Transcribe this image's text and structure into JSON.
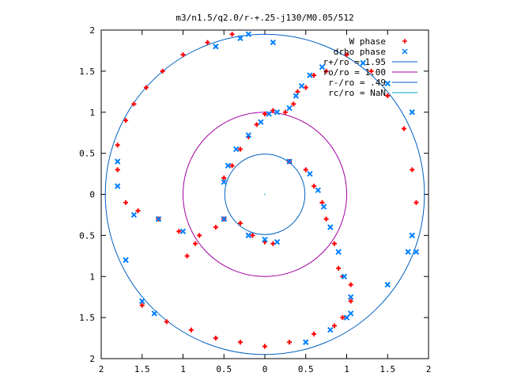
{
  "chart_data": {
    "type": "scatter",
    "title": "m3/n1.5/q2.0/r-+.25-j130/M0.05/512",
    "xlabel": "",
    "ylabel": "",
    "xlim": [
      -2,
      2
    ],
    "ylim": [
      -2,
      2
    ],
    "x_tick_labels": [
      "2",
      "1.5",
      "1",
      "0.5",
      "0",
      "0.5",
      "1",
      "1.5",
      "2"
    ],
    "y_tick_labels": [
      "2",
      "1.5",
      "1",
      "0.5",
      "0",
      "0.5",
      "1",
      "1.5",
      "2"
    ],
    "grid": false,
    "legend_position": "top-right",
    "legend": [
      {
        "label": "W phase",
        "marker": "+",
        "color": "#ff0000"
      },
      {
        "label": "drho phase",
        "marker": "x",
        "color": "#0080ff"
      },
      {
        "label": "r+/ro = 1.95",
        "line": true,
        "color": "#0060c0"
      },
      {
        "label": "ro/ro = 1.00",
        "line": true,
        "color": "#a000a0"
      },
      {
        "label": "r-/ro = .49",
        "line": true,
        "color": "#0060c0"
      },
      {
        "label": "rc/ro = NaN",
        "line": true,
        "color": "#00a0c0"
      }
    ],
    "circles": [
      {
        "name": "r+/ro = 1.95",
        "r": 1.95,
        "color": "#0060c0"
      },
      {
        "name": "ro/ro = 1.00",
        "r": 1.0,
        "color": "#a000a0"
      },
      {
        "name": "r-/ro = .49",
        "r": 0.49,
        "color": "#0060c0"
      }
    ],
    "series": [
      {
        "name": "W phase",
        "color": "#ff0000",
        "marker": "+",
        "points": [
          [
            -0.5,
            -0.3
          ],
          [
            -0.3,
            -0.35
          ],
          [
            -0.15,
            -0.5
          ],
          [
            0.0,
            -0.58
          ],
          [
            0.1,
            -0.6
          ],
          [
            -0.6,
            -0.4
          ],
          [
            -0.85,
            -0.6
          ],
          [
            -0.95,
            -0.75
          ],
          [
            -0.8,
            -0.5
          ],
          [
            -1.05,
            -0.45
          ],
          [
            -1.3,
            -0.3
          ],
          [
            -1.55,
            -0.2
          ],
          [
            -1.7,
            -0.1
          ],
          [
            -1.8,
            0.3
          ],
          [
            -1.8,
            0.6
          ],
          [
            -1.7,
            0.9
          ],
          [
            -1.6,
            1.1
          ],
          [
            -1.45,
            1.3
          ],
          [
            -1.25,
            1.5
          ],
          [
            -1.0,
            1.7
          ],
          [
            -0.7,
            1.85
          ],
          [
            -0.4,
            1.95
          ],
          [
            -0.5,
            0.2
          ],
          [
            -0.4,
            0.35
          ],
          [
            -0.3,
            0.55
          ],
          [
            -0.2,
            0.7
          ],
          [
            -0.1,
            0.85
          ],
          [
            0.0,
            0.98
          ],
          [
            0.1,
            1.02
          ],
          [
            0.25,
            1.0
          ],
          [
            0.35,
            1.1
          ],
          [
            0.4,
            1.25
          ],
          [
            0.5,
            1.3
          ],
          [
            0.6,
            1.45
          ],
          [
            0.75,
            1.5
          ],
          [
            0.3,
            0.4
          ],
          [
            0.5,
            0.3
          ],
          [
            0.6,
            0.1
          ],
          [
            0.7,
            -0.1
          ],
          [
            0.75,
            -0.3
          ],
          [
            0.85,
            -0.6
          ],
          [
            0.9,
            -0.9
          ],
          [
            0.95,
            -1.0
          ],
          [
            1.05,
            -1.1
          ],
          [
            1.05,
            -1.3
          ],
          [
            0.95,
            -1.5
          ],
          [
            0.85,
            -1.6
          ],
          [
            0.6,
            -1.7
          ],
          [
            0.3,
            -1.8
          ],
          [
            0.0,
            -1.85
          ],
          [
            -0.3,
            -1.8
          ],
          [
            -0.6,
            -1.75
          ],
          [
            -0.9,
            -1.65
          ],
          [
            -1.2,
            -1.55
          ],
          [
            -1.5,
            -1.35
          ],
          [
            1.0,
            1.7
          ],
          [
            1.3,
            1.5
          ],
          [
            1.5,
            1.2
          ],
          [
            1.7,
            0.8
          ],
          [
            1.8,
            0.3
          ],
          [
            1.85,
            -0.1
          ]
        ]
      },
      {
        "name": "drho phase",
        "color": "#0080ff",
        "marker": "x",
        "points": [
          [
            -0.5,
            0.15
          ],
          [
            -0.45,
            0.35
          ],
          [
            -0.35,
            0.55
          ],
          [
            -0.2,
            0.72
          ],
          [
            -0.05,
            0.88
          ],
          [
            0.05,
            0.98
          ],
          [
            0.15,
            1.0
          ],
          [
            0.3,
            1.05
          ],
          [
            0.38,
            1.2
          ],
          [
            0.45,
            1.32
          ],
          [
            0.55,
            1.45
          ],
          [
            0.7,
            1.55
          ],
          [
            0.3,
            0.4
          ],
          [
            0.55,
            0.25
          ],
          [
            0.65,
            0.05
          ],
          [
            0.72,
            -0.15
          ],
          [
            0.8,
            -0.4
          ],
          [
            0.9,
            -0.7
          ],
          [
            0.97,
            -1.0
          ],
          [
            1.05,
            -1.25
          ],
          [
            1.05,
            -1.45
          ],
          [
            -0.5,
            -0.3
          ],
          [
            -0.2,
            -0.5
          ],
          [
            0.0,
            -0.55
          ],
          [
            0.15,
            -0.58
          ],
          [
            -1.0,
            -0.45
          ],
          [
            -1.3,
            -0.3
          ],
          [
            -1.6,
            -0.25
          ],
          [
            -1.8,
            0.1
          ],
          [
            -1.8,
            0.4
          ],
          [
            -1.5,
            -1.3
          ],
          [
            -1.35,
            -1.45
          ],
          [
            -0.6,
            1.8
          ],
          [
            -0.3,
            1.9
          ],
          [
            -0.2,
            1.95
          ],
          [
            1.8,
            -0.5
          ],
          [
            1.85,
            -0.7
          ],
          [
            1.75,
            -0.7
          ],
          [
            1.5,
            -1.1
          ],
          [
            1.0,
            -1.5
          ],
          [
            0.8,
            -1.65
          ],
          [
            0.5,
            -1.8
          ],
          [
            1.2,
            1.6
          ],
          [
            1.5,
            1.35
          ],
          [
            1.8,
            1.0
          ],
          [
            0.1,
            1.85
          ],
          [
            -1.7,
            -0.8
          ]
        ]
      }
    ]
  }
}
